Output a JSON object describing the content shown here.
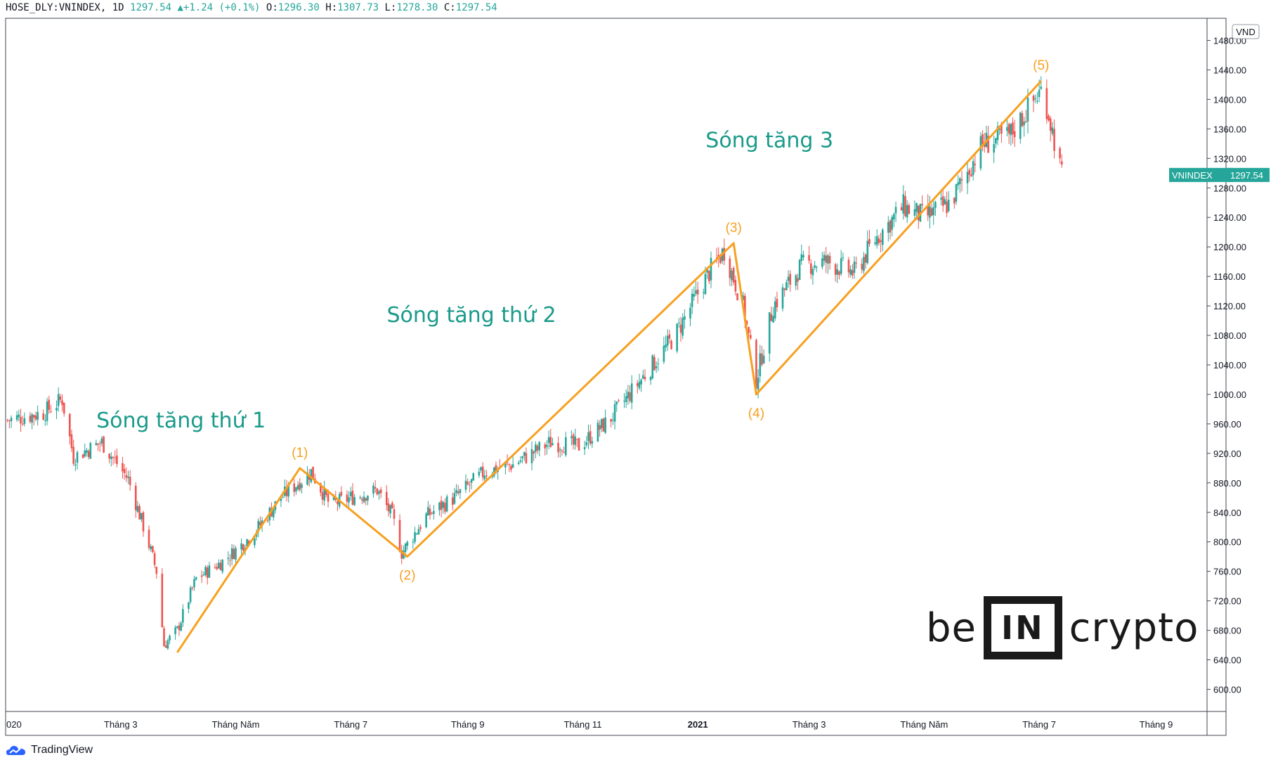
{
  "header": {
    "symbol": "HOSE_DLY:VNINDEX, 1D",
    "last": "1297.54",
    "change": "+1.24 (+0.1%)",
    "o_label": "O:",
    "o": "1296.30",
    "h_label": "H:",
    "h": "1307.73",
    "l_label": "L:",
    "l": "1278.30",
    "c_label": "C:",
    "c": "1297.54"
  },
  "footer": {
    "brand": "TradingView"
  },
  "logo": {
    "left": "be",
    "box": "IN",
    "right": "crypto"
  },
  "colors": {
    "up": "#26a69a",
    "down": "#ef5350",
    "wave": "#f7a020",
    "text_teal": "#1a9a8a"
  },
  "chart_data": {
    "type": "candlestick",
    "title": "HOSE_DLY:VNINDEX, 1D",
    "currency": "VND",
    "ylim": [
      570,
      1510
    ],
    "y_ticks": [
      600,
      640,
      680,
      720,
      760,
      800,
      840,
      880,
      920,
      960,
      1000,
      1040,
      1080,
      1120,
      1160,
      1200,
      1240,
      1280,
      1320,
      1360,
      1400,
      1440,
      1480
    ],
    "x_ticks": [
      {
        "label": "020",
        "date": "2020-01-01"
      },
      {
        "label": "Tháng 3",
        "date": "2020-03-01"
      },
      {
        "label": "Tháng Năm",
        "date": "2020-05-01"
      },
      {
        "label": "Tháng 7",
        "date": "2020-07-01"
      },
      {
        "label": "Tháng 9",
        "date": "2020-09-01"
      },
      {
        "label": "Tháng 11",
        "date": "2020-11-01"
      },
      {
        "label": "2021",
        "date": "2021-01-01"
      },
      {
        "label": "Tháng 3",
        "date": "2021-03-01"
      },
      {
        "label": "Tháng Năm",
        "date": "2021-05-01"
      },
      {
        "label": "Tháng 7",
        "date": "2021-07-01"
      },
      {
        "label": "Tháng 9",
        "date": "2021-09-01"
      }
    ],
    "price_path": [
      [
        "2020-01-01",
        965
      ],
      [
        "2020-01-20",
        975
      ],
      [
        "2020-01-30",
        993
      ],
      [
        "2020-02-05",
        915
      ],
      [
        "2020-02-20",
        935
      ],
      [
        "2020-03-05",
        885
      ],
      [
        "2020-03-15",
        805
      ],
      [
        "2020-03-20",
        760
      ],
      [
        "2020-03-24",
        660
      ],
      [
        "2020-03-31",
        680
      ],
      [
        "2020-04-10",
        750
      ],
      [
        "2020-04-25",
        775
      ],
      [
        "2020-05-10",
        810
      ],
      [
        "2020-05-25",
        860
      ],
      [
        "2020-06-10",
        895
      ],
      [
        "2020-06-20",
        850
      ],
      [
        "2020-07-01",
        860
      ],
      [
        "2020-07-15",
        870
      ],
      [
        "2020-07-23",
        835
      ],
      [
        "2020-07-28",
        785
      ],
      [
        "2020-08-10",
        835
      ],
      [
        "2020-08-25",
        860
      ],
      [
        "2020-09-10",
        895
      ],
      [
        "2020-09-25",
        905
      ],
      [
        "2020-10-15",
        935
      ],
      [
        "2020-10-30",
        930
      ],
      [
        "2020-11-15",
        965
      ],
      [
        "2020-12-05",
        1030
      ],
      [
        "2020-12-20",
        1080
      ],
      [
        "2021-01-08",
        1170
      ],
      [
        "2021-01-15",
        1195
      ],
      [
        "2021-01-25",
        1120
      ],
      [
        "2021-02-01",
        1020
      ],
      [
        "2021-02-10",
        1120
      ],
      [
        "2021-02-25",
        1175
      ],
      [
        "2021-03-10",
        1180
      ],
      [
        "2021-03-25",
        1165
      ],
      [
        "2021-04-05",
        1210
      ],
      [
        "2021-04-20",
        1255
      ],
      [
        "2021-05-01",
        1240
      ],
      [
        "2021-05-15",
        1260
      ],
      [
        "2021-06-01",
        1340
      ],
      [
        "2021-06-15",
        1350
      ],
      [
        "2021-06-30",
        1405
      ],
      [
        "2021-07-03",
        1415
      ],
      [
        "2021-07-09",
        1345
      ],
      [
        "2021-07-13",
        1297
      ]
    ],
    "waves": [
      {
        "label": "(1)",
        "date": "2020-06-04",
        "value": 900
      },
      {
        "label": "(2)",
        "date": "2020-07-31",
        "value": 780
      },
      {
        "label": "(3)",
        "date": "2021-01-20",
        "value": 1205
      },
      {
        "label": "(4)",
        "date": "2021-02-01",
        "value": 1000
      },
      {
        "label": "(5)",
        "date": "2021-07-02",
        "value": 1425
      }
    ],
    "wave_start": {
      "date": "2020-03-31",
      "value": 650
    },
    "annotations": [
      {
        "text": "Sóng tăng thứ 1",
        "date": "2020-04-02",
        "value": 955
      },
      {
        "text": "Sóng tăng thứ 2",
        "date": "2020-09-03",
        "value": 1098
      },
      {
        "text": "Sóng tăng 3",
        "date": "2021-02-08",
        "value": 1335
      }
    ],
    "last_price_label": {
      "name": "VNINDEX",
      "value": "1297.54"
    }
  }
}
